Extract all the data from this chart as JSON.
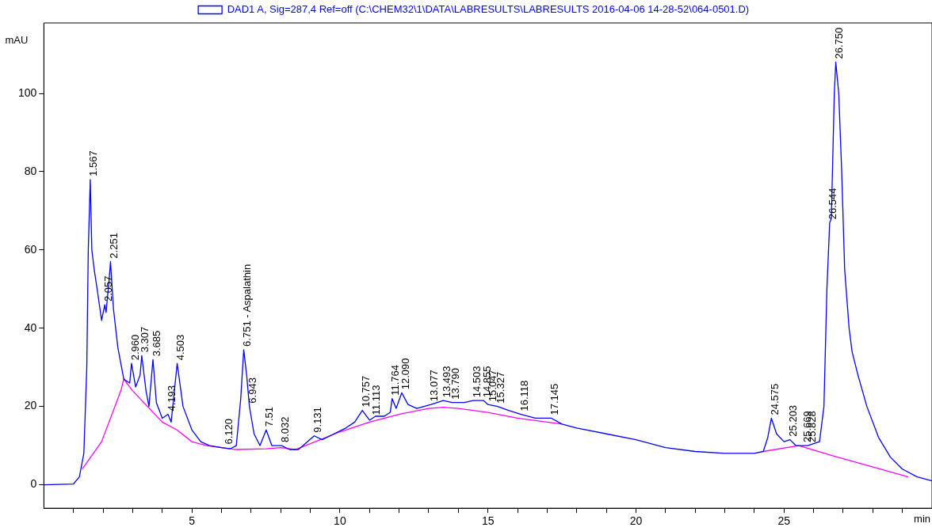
{
  "chart_data": {
    "type": "line",
    "xlabel": "min",
    "ylabel": "mAU",
    "legend": "top",
    "grid": false,
    "marker": "none",
    "line_style": "solid",
    "xlim": [
      0,
      30
    ],
    "ylim": [
      -6,
      118
    ],
    "xticks": [
      {
        "value": 1,
        "label": null
      },
      {
        "value": 2,
        "label": null
      },
      {
        "value": 3,
        "label": null
      },
      {
        "value": 4,
        "label": null
      },
      5,
      {
        "value": 6,
        "label": null
      },
      {
        "value": 7,
        "label": null
      },
      {
        "value": 8,
        "label": null
      },
      {
        "value": 9,
        "label": null
      },
      10,
      {
        "value": 11,
        "label": null
      },
      {
        "value": 12,
        "label": null
      },
      {
        "value": 13,
        "label": null
      },
      {
        "value": 14,
        "label": null
      },
      15,
      {
        "value": 16,
        "label": null
      },
      {
        "value": 17,
        "label": null
      },
      {
        "value": 18,
        "label": null
      },
      {
        "value": 19,
        "label": null
      },
      20,
      {
        "value": 21,
        "label": null
      },
      {
        "value": 22,
        "label": null
      },
      {
        "value": 23,
        "label": null
      },
      {
        "value": 24,
        "label": null
      },
      25,
      {
        "value": 26,
        "label": null
      },
      {
        "value": 27,
        "label": null
      },
      {
        "value": 28,
        "label": null
      },
      {
        "value": 29,
        "label": null
      }
    ],
    "yticks": [
      0,
      20,
      40,
      60,
      80,
      100
    ],
    "series": [
      {
        "name": "DAD1 A, Sig=287,4 Ref=off (C:\\CHEM32\\1\\DATA\\LABRESULTS\\LABRESULTS 2016-04-06 14-28-52\\064-0501.D)",
        "color": "#0000ff",
        "x": [
          0,
          1.0,
          1.2,
          1.35,
          1.45,
          1.5,
          1.567,
          1.62,
          1.7,
          1.8,
          1.95,
          2.057,
          2.1,
          2.2,
          2.251,
          2.35,
          2.5,
          2.7,
          2.9,
          2.96,
          3.1,
          3.25,
          3.307,
          3.45,
          3.55,
          3.685,
          3.8,
          4.0,
          4.193,
          4.3,
          4.503,
          4.7,
          5.0,
          5.3,
          5.6,
          6.0,
          6.3,
          6.5,
          6.65,
          6.751,
          6.85,
          6.943,
          7.1,
          7.3,
          7.51,
          7.7,
          8.032,
          8.3,
          8.6,
          9.131,
          9.4,
          9.8,
          10.2,
          10.5,
          10.757,
          11.0,
          11.2,
          11.5,
          11.7,
          11.764,
          11.9,
          12.09,
          12.3,
          12.6,
          13.077,
          13.493,
          13.79,
          14.2,
          14.503,
          14.855,
          15.0,
          15.327,
          15.7,
          16.118,
          16.6,
          17.145,
          17.5,
          18,
          19,
          20,
          21,
          22,
          23,
          24,
          24.3,
          24.45,
          24.575,
          24.75,
          25.0,
          25.203,
          25.4,
          25.8,
          26.2,
          26.35,
          26.45,
          26.544,
          26.6,
          26.7,
          26.75,
          26.85,
          26.95,
          27.05,
          27.2,
          27.3,
          27.5,
          27.8,
          28.2,
          28.6,
          29.0,
          29.5,
          30
        ],
        "values": [
          0,
          0.2,
          2,
          8,
          30,
          60,
          78,
          60,
          55,
          50,
          42,
          46,
          44,
          52,
          57,
          45,
          35,
          27,
          26,
          31,
          25,
          28,
          33,
          24,
          20,
          32,
          21,
          17,
          18,
          16,
          31,
          20,
          14,
          11,
          10,
          9.5,
          9.2,
          10,
          22,
          34.5,
          28,
          20,
          13,
          10,
          14,
          10,
          10,
          9,
          9,
          12.5,
          11.5,
          13,
          14.5,
          16,
          19,
          16.5,
          17.5,
          17.5,
          18.5,
          22,
          19.5,
          23.5,
          20.5,
          19.5,
          20.5,
          21.5,
          21,
          21,
          21.5,
          21.5,
          20.5,
          20,
          19,
          18,
          17,
          17,
          15.5,
          14.5,
          13,
          11.5,
          9.5,
          8.5,
          8,
          8,
          8.5,
          12,
          17,
          13,
          11,
          11.5,
          10,
          10,
          11,
          20,
          50,
          67,
          68,
          100,
          108,
          100,
          80,
          55,
          40,
          34,
          28,
          20,
          12,
          7,
          4,
          2,
          1
        ]
      },
      {
        "color": "#ff00ff",
        "x": [
          1.3,
          1.95,
          2.6,
          2.7,
          3.0,
          3.5,
          4.0,
          4.5,
          5.0,
          5.5,
          6.0,
          6.5,
          7.5,
          8.0,
          8.5,
          9.0,
          10,
          11,
          12,
          13,
          13.5,
          14,
          15,
          16,
          17,
          17.5,
          20,
          24.3,
          25.5,
          26.6,
          29.2
        ],
        "values": [
          4,
          11,
          24,
          27,
          24,
          20,
          16,
          14,
          11,
          10,
          9.5,
          9,
          9.2,
          9.5,
          9,
          10.5,
          13.5,
          16,
          18,
          19.5,
          19.8,
          19.5,
          18.5,
          17,
          16,
          15.5,
          null,
          8.5,
          10,
          7.5,
          2
        ]
      }
    ],
    "annotations": [
      {
        "text": "1.567",
        "x": 1.567,
        "y": 78
      },
      {
        "text": "2.057",
        "x": 2.057,
        "y": 46
      },
      {
        "text": "2.251",
        "x": 2.251,
        "y": 57
      },
      {
        "text": "2.960",
        "x": 2.96,
        "y": 31
      },
      {
        "text": "3.307",
        "x": 3.307,
        "y": 33
      },
      {
        "text": "3.685",
        "x": 3.685,
        "y": 32
      },
      {
        "text": "4.193",
        "x": 4.193,
        "y": 18
      },
      {
        "text": "4.503",
        "x": 4.503,
        "y": 31
      },
      {
        "text": "6.120",
        "x": 6.12,
        "y": 9.5
      },
      {
        "text": "6.751 - Aspalathin",
        "x": 6.751,
        "y": 34.5
      },
      {
        "text": "6.943",
        "x": 6.943,
        "y": 20
      },
      {
        "text": "7.51",
        "x": 7.51,
        "y": 14
      },
      {
        "text": "8.032",
        "x": 8.032,
        "y": 10
      },
      {
        "text": "9.131",
        "x": 9.131,
        "y": 12.5
      },
      {
        "text": "10.757",
        "x": 10.757,
        "y": 19
      },
      {
        "text": "11.113",
        "x": 11.113,
        "y": 17
      },
      {
        "text": "11.764",
        "x": 11.764,
        "y": 22
      },
      {
        "text": "12.090",
        "x": 12.09,
        "y": 23.5
      },
      {
        "text": "13.077",
        "x": 13.077,
        "y": 20.5
      },
      {
        "text": "13.493",
        "x": 13.493,
        "y": 21.5
      },
      {
        "text": "13.790",
        "x": 13.79,
        "y": 21
      },
      {
        "text": "14.503",
        "x": 14.503,
        "y": 21.5
      },
      {
        "text": "14.855",
        "x": 14.855,
        "y": 21.5
      },
      {
        "text": "15.047",
        "x": 15.047,
        "y": 20.5
      },
      {
        "text": "15.327",
        "x": 15.327,
        "y": 20
      },
      {
        "text": "16.118",
        "x": 16.118,
        "y": 18
      },
      {
        "text": "17.145",
        "x": 17.145,
        "y": 17
      },
      {
        "text": "24.575",
        "x": 24.575,
        "y": 17
      },
      {
        "text": "25.203",
        "x": 25.203,
        "y": 11.5
      },
      {
        "text": "25.669",
        "x": 25.669,
        "y": 10
      },
      {
        "text": "25.828",
        "x": 25.828,
        "y": 10
      },
      {
        "text": "26.544",
        "x": 26.544,
        "y": 67
      },
      {
        "text": "26.750",
        "x": 26.75,
        "y": 108
      }
    ]
  }
}
